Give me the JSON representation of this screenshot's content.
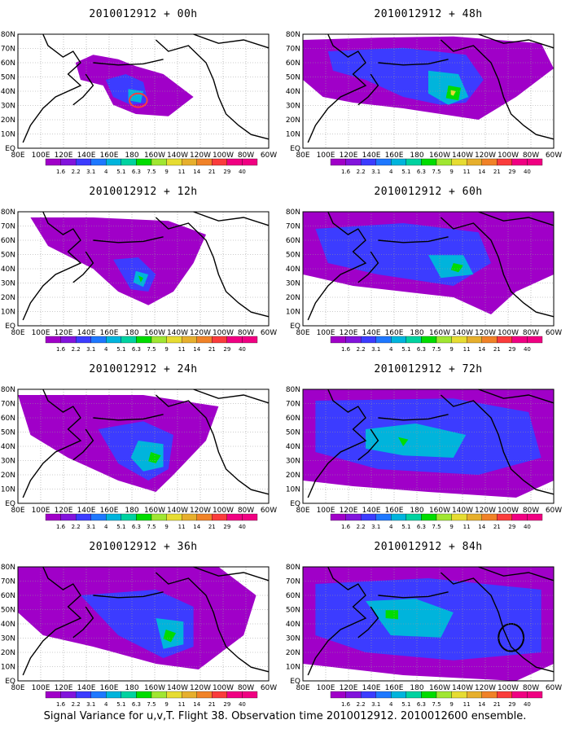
{
  "caption": "Signal Variance for u,v,T. Flight 38. Observation time 2010012912. 2010012600 ensemble.",
  "colorbar": {
    "labels": [
      "1.6",
      "2.2",
      "3.1",
      "4",
      "5.1",
      "6.3",
      "7.5",
      "9",
      "11",
      "14",
      "21",
      "29",
      "40"
    ],
    "colors": [
      "#a000c8",
      "#8214dc",
      "#3c3cff",
      "#1e78ff",
      "#00b4dc",
      "#00d2a0",
      "#00dc00",
      "#a0e632",
      "#e6dc32",
      "#e6af2d",
      "#f08228",
      "#fa3c3c",
      "#f00082"
    ]
  },
  "axes": {
    "y_ticks": [
      "EQ",
      "10N",
      "20N",
      "30N",
      "40N",
      "50N",
      "60N",
      "70N",
      "80N"
    ],
    "x_ticks": [
      "80E",
      "100E",
      "120E",
      "140E",
      "160E",
      "180",
      "160W",
      "140W",
      "120W",
      "100W",
      "80W",
      "60W"
    ]
  },
  "chart_data": [
    {
      "type": "heatmap",
      "title": "2010012912 + 00h",
      "peak": "red ring near 170W 40N",
      "coverage": "small patch 150E-140W, 25N-60N"
    },
    {
      "type": "heatmap",
      "title": "2010012912 + 48h",
      "peak": "green/yellow near 140W 40N",
      "coverage": "broad band 80E-80W, 15N-80N"
    },
    {
      "type": "heatmap",
      "title": "2010012912 + 12h",
      "peak": "green near 160W 40N",
      "coverage": "patch 140E-140W, 20N-70N"
    },
    {
      "type": "heatmap",
      "title": "2010012912 + 60h",
      "peak": "green near 140W 45N",
      "coverage": "broad band 80E-60W, 10N-80N"
    },
    {
      "type": "heatmap",
      "title": "2010012912 + 24h",
      "peak": "green near 160W 35N",
      "coverage": "patch 100E-130W, 10N-80N"
    },
    {
      "type": "heatmap",
      "title": "2010012912 + 72h",
      "peak": "green spots 140E-140W",
      "coverage": "whole domain 80E-60W, 5N-80N"
    },
    {
      "type": "heatmap",
      "title": "2010012912 + 36h",
      "peak": "green near 145W 40N",
      "coverage": "band 80E-100W, 10N-80N"
    },
    {
      "type": "heatmap",
      "title": "2010012912 + 84h",
      "peak": "green near 160E 50N",
      "coverage": "whole domain 80E-60W, 5N-80N"
    }
  ]
}
